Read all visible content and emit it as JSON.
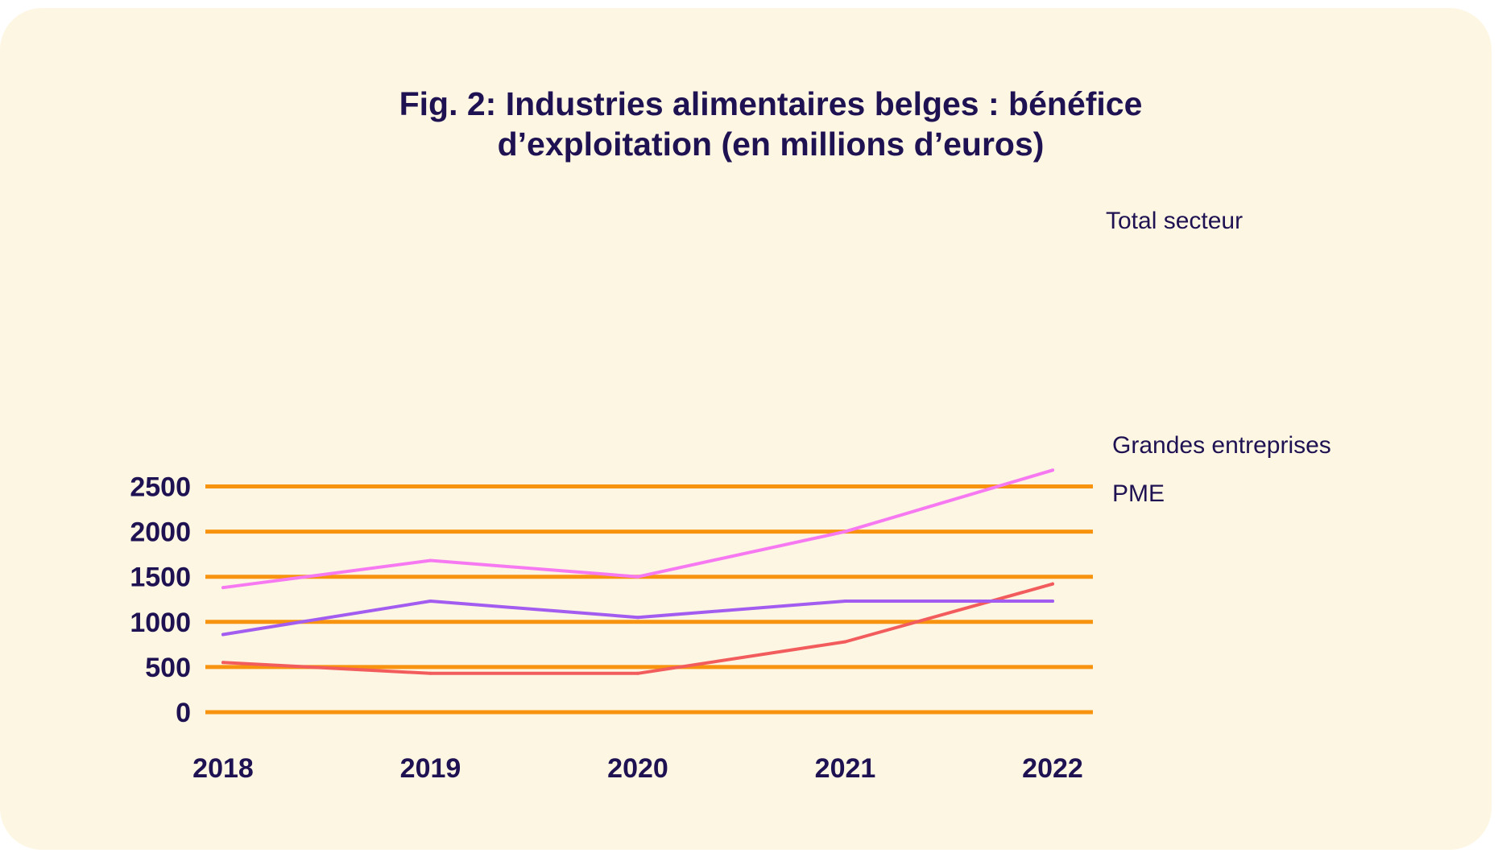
{
  "chart_data": {
    "type": "line",
    "title_lines": [
      "Fig. 2: Industries alimentaires belges : bénéfice",
      "d’exploitation (en millions d’euros)"
    ],
    "x": [
      "2018",
      "2019",
      "2020",
      "2021",
      "2022"
    ],
    "y_ticks": [
      "0",
      "500",
      "1000",
      "1500",
      "2000",
      "2500"
    ],
    "ylim": [
      0,
      2700
    ],
    "grid": true,
    "series": [
      {
        "name": "Total secteur",
        "values": [
          1380,
          1680,
          1500,
          2000,
          2680
        ],
        "color": "#f679f2"
      },
      {
        "name": "Grandes entreprises",
        "values": [
          550,
          430,
          430,
          780,
          1420
        ],
        "color": "#f25c5c"
      },
      {
        "name": "PME",
        "values": [
          860,
          1230,
          1050,
          1230,
          1230
        ],
        "color": "#a35cf0"
      }
    ],
    "gridline_color": "#f7930f",
    "background_color": "#fdf6e3",
    "text_color": "#1f1252"
  }
}
